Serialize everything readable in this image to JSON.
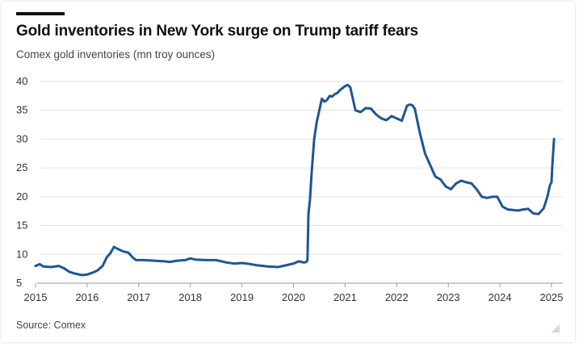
{
  "title": "Gold inventories in New York surge on Trump tariff fears",
  "subtitle": "Comex gold inventories (mn troy ounces)",
  "source": "Source: Comex",
  "colors": {
    "line": "#1f5597",
    "grid": "#e2e2e2",
    "axis": "#999999"
  },
  "chart_data": {
    "type": "line",
    "title": "Gold inventories in New York surge on Trump tariff fears",
    "ylabel": "Comex gold inventories (mn troy ounces)",
    "xlabel": "",
    "xlim": [
      2015,
      2025.15
    ],
    "ylim": [
      5,
      40
    ],
    "x_ticks": [
      2015,
      2016,
      2017,
      2018,
      2019,
      2020,
      2021,
      2022,
      2023,
      2024,
      2025
    ],
    "y_ticks": [
      5,
      10,
      15,
      20,
      25,
      30,
      35,
      40
    ],
    "grid": "horizontal",
    "series": [
      {
        "name": "Comex gold inventories",
        "x": [
          2015.0,
          2015.08,
          2015.15,
          2015.3,
          2015.45,
          2015.55,
          2015.65,
          2015.75,
          2015.9,
          2016.0,
          2016.1,
          2016.2,
          2016.3,
          2016.38,
          2016.45,
          2016.52,
          2016.58,
          2016.63,
          2016.7,
          2016.8,
          2016.88,
          2016.95,
          2017.1,
          2017.3,
          2017.5,
          2017.6,
          2017.75,
          2017.9,
          2018.0,
          2018.1,
          2018.3,
          2018.5,
          2018.7,
          2018.85,
          2019.0,
          2019.1,
          2019.3,
          2019.5,
          2019.7,
          2019.85,
          2020.0,
          2020.1,
          2020.2,
          2020.25,
          2020.27,
          2020.29,
          2020.32,
          2020.35,
          2020.4,
          2020.45,
          2020.5,
          2020.55,
          2020.6,
          2020.65,
          2020.7,
          2020.75,
          2020.8,
          2020.85,
          2020.9,
          2021.0,
          2021.05,
          2021.1,
          2021.15,
          2021.2,
          2021.3,
          2021.4,
          2021.5,
          2021.6,
          2021.7,
          2021.8,
          2021.9,
          2022.0,
          2022.1,
          2022.2,
          2022.25,
          2022.3,
          2022.35,
          2022.45,
          2022.55,
          2022.65,
          2022.75,
          2022.85,
          2022.95,
          2023.05,
          2023.15,
          2023.25,
          2023.35,
          2023.45,
          2023.55,
          2023.65,
          2023.75,
          2023.85,
          2023.95,
          2024.05,
          2024.15,
          2024.25,
          2024.35,
          2024.45,
          2024.55,
          2024.65,
          2024.75,
          2024.85,
          2024.92,
          2024.97,
          2025.0,
          2025.02,
          2025.05
        ],
        "y": [
          8.0,
          8.3,
          7.9,
          7.8,
          8.0,
          7.6,
          7.0,
          6.7,
          6.4,
          6.5,
          6.8,
          7.2,
          8.0,
          9.5,
          10.2,
          11.3,
          11.0,
          10.8,
          10.5,
          10.3,
          9.5,
          9.0,
          9.0,
          8.9,
          8.8,
          8.7,
          8.9,
          9.0,
          9.3,
          9.1,
          9.0,
          9.0,
          8.6,
          8.4,
          8.5,
          8.4,
          8.1,
          7.9,
          7.8,
          8.1,
          8.4,
          8.8,
          8.6,
          8.7,
          9.0,
          17.0,
          19.5,
          24.0,
          30.0,
          33.0,
          35.0,
          37.0,
          36.5,
          36.8,
          37.5,
          37.4,
          37.8,
          38.0,
          38.5,
          39.2,
          39.4,
          39.0,
          37.0,
          35.0,
          34.7,
          35.4,
          35.3,
          34.3,
          33.6,
          33.3,
          34.0,
          33.6,
          33.2,
          35.8,
          36.0,
          35.9,
          35.3,
          31.0,
          27.5,
          25.5,
          23.5,
          23.0,
          21.8,
          21.3,
          22.3,
          22.8,
          22.5,
          22.3,
          21.3,
          20.0,
          19.8,
          20.0,
          20.0,
          18.3,
          17.8,
          17.7,
          17.6,
          17.8,
          17.9,
          17.1,
          17.0,
          18.0,
          20.0,
          22.0,
          22.5,
          26.0,
          30.0
        ]
      }
    ]
  }
}
